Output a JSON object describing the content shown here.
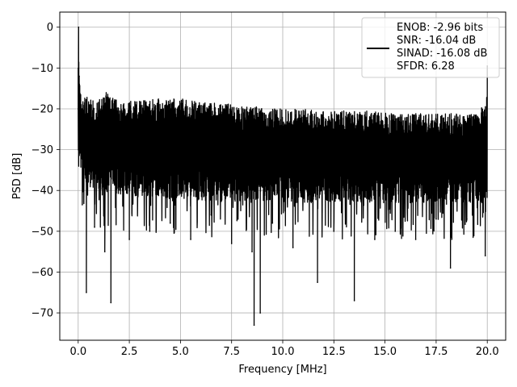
{
  "chart_data": {
    "type": "line",
    "xlabel": "Frequency [MHz]",
    "ylabel": "PSD [dB]",
    "xlim": [
      -0.9,
      20.9
    ],
    "ylim": [
      -76.7,
      3.7
    ],
    "xticks": [
      0.0,
      2.5,
      5.0,
      7.5,
      10.0,
      12.5,
      15.0,
      17.5,
      20.0
    ],
    "xtick_labels": [
      "0.0",
      "2.5",
      "5.0",
      "7.5",
      "10.0",
      "12.5",
      "15.0",
      "17.5",
      "20.0"
    ],
    "yticks": [
      0,
      -10,
      -20,
      -30,
      -40,
      -50,
      -60,
      -70
    ],
    "ytick_labels": [
      "0",
      "−10",
      "−20",
      "−30",
      "−40",
      "−50",
      "−60",
      "−70"
    ],
    "grid": true,
    "legend_position": "top-right",
    "series": [
      {
        "name": "ENOB: -2.96 bits\nSNR: -16.04 dB\nSINAD: -16.08 dB\nSFDR: 6.28",
        "color": "#000000",
        "x": [
          0.0,
          0.02,
          0.05,
          0.08,
          0.12,
          0.2,
          0.3,
          0.4,
          0.5,
          0.6,
          0.8,
          1.0,
          1.3,
          1.6,
          2.0,
          2.5,
          3.0,
          3.5,
          4.0,
          4.5,
          5.0,
          5.5,
          6.0,
          6.5,
          7.0,
          7.5,
          8.0,
          8.5,
          8.6,
          8.9,
          9.0,
          9.5,
          10.0,
          10.5,
          11.0,
          11.7,
          12.0,
          12.5,
          13.0,
          13.5,
          14.0,
          14.5,
          15.0,
          15.5,
          16.0,
          16.5,
          17.0,
          17.5,
          18.0,
          18.2,
          18.5,
          19.0,
          19.5,
          19.9,
          20.0
        ],
        "y": [
          -20.0,
          0.0,
          -12.0,
          -24.0,
          -30.0,
          -43.5,
          -28.0,
          -65.0,
          -27.0,
          -38.0,
          -49.0,
          -30.0,
          -55.0,
          -67.5,
          -32.0,
          -52.0,
          -28.0,
          -50.0,
          -33.0,
          -48.0,
          -30.0,
          -52.0,
          -35.0,
          -46.0,
          -31.0,
          -53.0,
          -36.0,
          -55.0,
          -73.0,
          -70.0,
          -34.0,
          -48.0,
          -31.0,
          -54.0,
          -36.0,
          -62.5,
          -33.0,
          -50.0,
          -29.0,
          -67.0,
          -34.0,
          -52.0,
          -31.0,
          -50.0,
          -33.0,
          -52.0,
          -29.0,
          -47.0,
          -33.0,
          -59.0,
          -31.0,
          -47.0,
          -33.0,
          -56.0,
          -9.5
        ]
      }
    ],
    "upper_envelope": {
      "x": [
        0.0,
        0.02,
        0.05,
        0.1,
        0.2,
        0.5,
        1.0,
        1.3,
        1.5,
        2.0,
        3.0,
        4.0,
        5.0,
        6.0,
        7.0,
        8.0,
        9.0,
        10.0,
        11.0,
        12.0,
        13.0,
        14.0,
        15.0,
        16.0,
        17.0,
        18.0,
        19.0,
        19.5,
        19.95,
        20.0
      ],
      "y": [
        -6.0,
        0.0,
        -12.0,
        -15.0,
        -17.5,
        -17.0,
        -17.5,
        -14.5,
        -17.0,
        -18.0,
        -18.0,
        -17.5,
        -17.5,
        -18.5,
        -18.5,
        -19.5,
        -19.5,
        -20.0,
        -20.0,
        -20.5,
        -20.5,
        -20.5,
        -21.0,
        -21.0,
        -21.0,
        -21.0,
        -21.5,
        -21.0,
        -18.0,
        -9.5
      ]
    },
    "lower_envelope": {
      "x": [
        0.0,
        0.1,
        0.2,
        0.5,
        1.0,
        1.5,
        2.0,
        3.0,
        4.0,
        5.0,
        6.0,
        7.0,
        8.0,
        9.0,
        10.0,
        11.0,
        12.0,
        13.0,
        14.0,
        15.0,
        16.0,
        17.0,
        18.0,
        19.0,
        20.0
      ],
      "y": [
        -35.0,
        -37.0,
        -38.0,
        -39.0,
        -40.0,
        -40.5,
        -41.0,
        -41.5,
        -42.0,
        -42.0,
        -42.5,
        -42.5,
        -43.0,
        -43.0,
        -43.0,
        -43.0,
        -43.0,
        -43.0,
        -43.0,
        -43.0,
        -43.0,
        -43.0,
        -43.0,
        -43.0,
        -43.0
      ]
    }
  }
}
